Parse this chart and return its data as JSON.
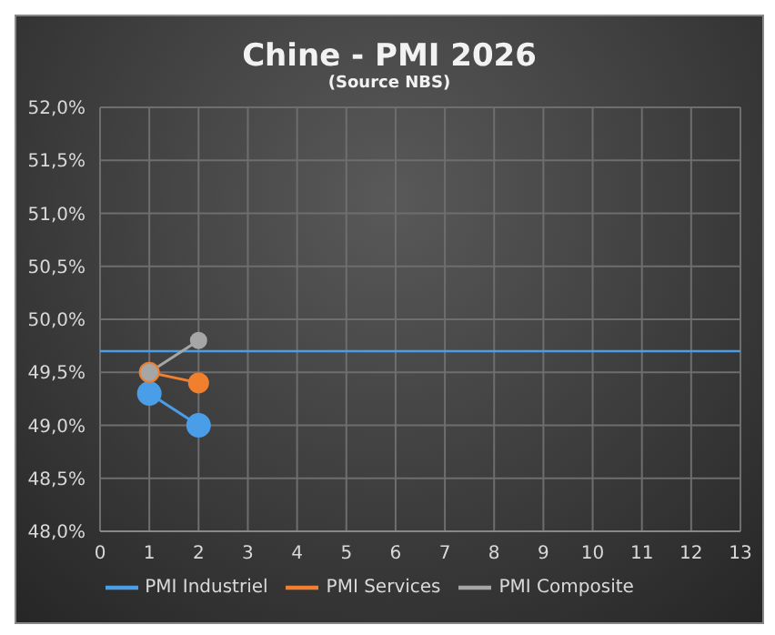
{
  "chart_data": {
    "type": "line",
    "title": "Chine - PMI 2026",
    "subtitle": "(Source NBS)",
    "x": [
      1,
      2
    ],
    "series": [
      {
        "name": "PMI Industriel",
        "color": "#4a9ee8",
        "values": [
          49.3,
          49.0
        ]
      },
      {
        "name": "PMI Services",
        "color": "#f07f2e",
        "values": [
          49.5,
          49.4
        ]
      },
      {
        "name": "PMI Composite",
        "color": "#a6a6a6",
        "values": [
          49.5,
          49.8
        ]
      }
    ],
    "xlim": [
      0,
      13
    ],
    "xticks": [
      0,
      1,
      2,
      3,
      4,
      5,
      6,
      7,
      8,
      9,
      10,
      11,
      12,
      13
    ],
    "ylim": [
      48,
      52
    ],
    "yticks": [
      {
        "value": 48,
        "label": "48,0%"
      },
      {
        "value": 48.5,
        "label": "48,5%"
      },
      {
        "value": 49,
        "label": "49,0%"
      },
      {
        "value": 49.5,
        "label": "49,5%"
      },
      {
        "value": 50,
        "label": "50,0%"
      },
      {
        "value": 50.5,
        "label": "50,5%"
      },
      {
        "value": 51,
        "label": "51,0%"
      },
      {
        "value": 51.5,
        "label": "51,5%"
      },
      {
        "value": 52,
        "label": "52,0%"
      }
    ],
    "ref_lines": [
      {
        "axis": "y",
        "value": 49.7,
        "color": "#4a9ee8"
      }
    ],
    "grid": true,
    "legend": "bottom",
    "marker": "circle",
    "line_style": "solid"
  }
}
